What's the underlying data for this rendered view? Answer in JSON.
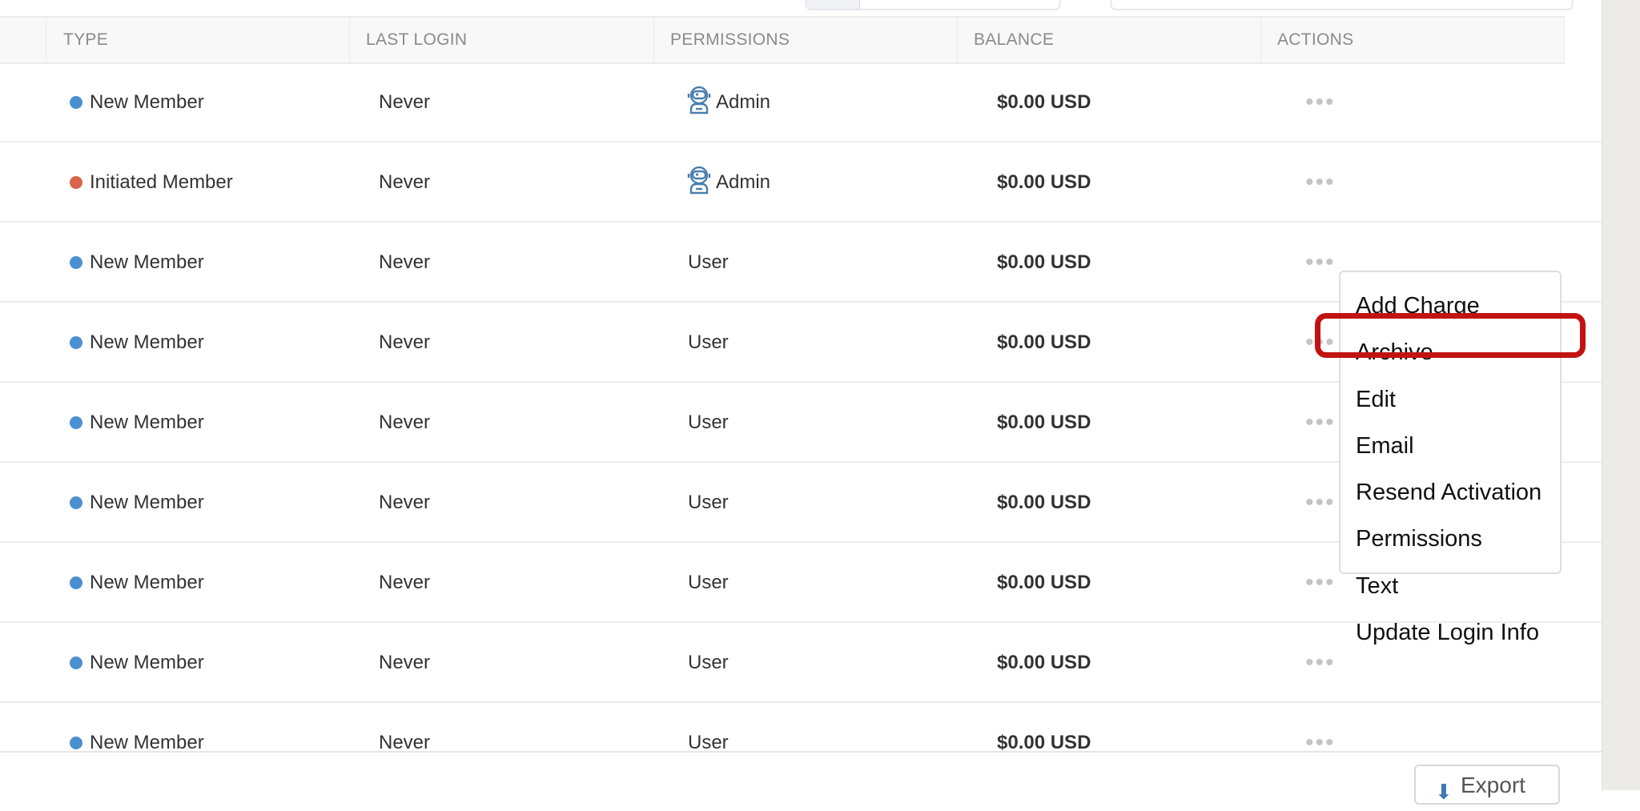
{
  "table": {
    "columns": [
      "TYPE",
      "LAST LOGIN",
      "PERMISSIONS",
      "BALANCE",
      "ACTIONS"
    ],
    "rows": [
      {
        "type": "New Member",
        "type_color": "#4a8fd1",
        "last_login": "Never",
        "permissions": "Admin",
        "admin_icon": true,
        "balance": "$0.00 USD",
        "actions": "•••"
      },
      {
        "type": "Initiated Member",
        "type_color": "#d9634b",
        "last_login": "Never",
        "permissions": "Admin",
        "admin_icon": true,
        "balance": "$0.00 USD",
        "actions": "•••"
      },
      {
        "type": "New Member",
        "type_color": "#4a8fd1",
        "last_login": "Never",
        "permissions": "User",
        "admin_icon": false,
        "balance": "$0.00 USD",
        "actions": "•••"
      },
      {
        "type": "New Member",
        "type_color": "#4a8fd1",
        "last_login": "Never",
        "permissions": "User",
        "admin_icon": false,
        "balance": "$0.00 USD",
        "actions": "•••"
      },
      {
        "type": "New Member",
        "type_color": "#4a8fd1",
        "last_login": "Never",
        "permissions": "User",
        "admin_icon": false,
        "balance": "$0.00 USD",
        "actions": "•••"
      },
      {
        "type": "New Member",
        "type_color": "#4a8fd1",
        "last_login": "Never",
        "permissions": "User",
        "admin_icon": false,
        "balance": "$0.00 USD",
        "actions": "•••"
      },
      {
        "type": "New Member",
        "type_color": "#4a8fd1",
        "last_login": "Never",
        "permissions": "User",
        "admin_icon": false,
        "balance": "$0.00 USD",
        "actions": "•••"
      },
      {
        "type": "New Member",
        "type_color": "#4a8fd1",
        "last_login": "Never",
        "permissions": "User",
        "admin_icon": false,
        "balance": "$0.00 USD",
        "actions": "•••"
      },
      {
        "type": "New Member",
        "type_color": "#4a8fd1",
        "last_login": "Never",
        "permissions": "User",
        "admin_icon": false,
        "balance": "$0.00 USD",
        "actions": "•••"
      }
    ]
  },
  "actions_menu": {
    "items": [
      "Add Charge",
      "Archive",
      "Edit",
      "Email",
      "Resend Activation",
      "Permissions",
      "Text",
      "Update Login Info"
    ],
    "highlighted": "Archive",
    "highlight_color": "#c31212"
  },
  "footer": {
    "export_label": "Export",
    "export_icon": "download-icon"
  }
}
